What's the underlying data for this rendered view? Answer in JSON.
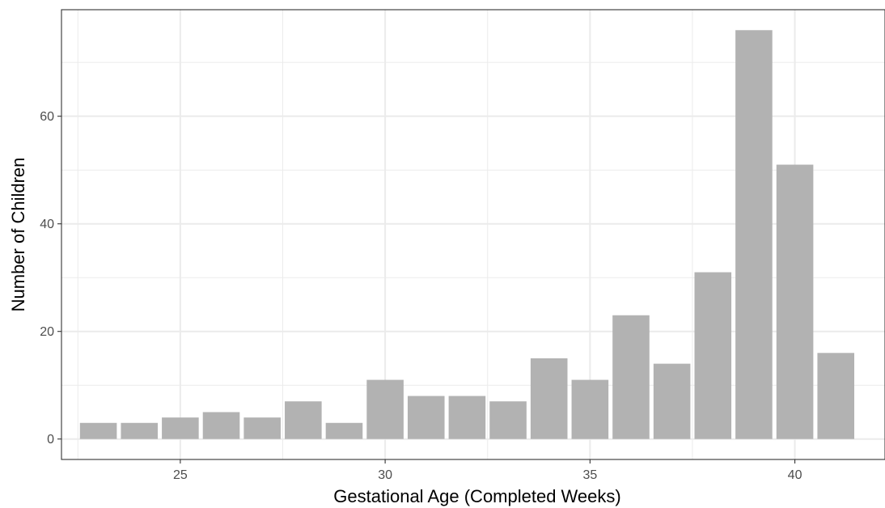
{
  "chart_data": {
    "type": "bar",
    "title": "",
    "xlabel": "Gestational Age (Completed Weeks)",
    "ylabel": "Number of Children",
    "x": [
      23,
      24,
      25,
      26,
      27,
      28,
      29,
      30,
      31,
      32,
      33,
      34,
      35,
      36,
      37,
      38,
      39,
      40,
      41
    ],
    "values": [
      3,
      3,
      4,
      5,
      4,
      7,
      3,
      11,
      8,
      8,
      7,
      15,
      11,
      23,
      14,
      31,
      76,
      51,
      16
    ],
    "xlim": [
      22.1,
      42.2
    ],
    "ylim": [
      -3.8,
      79.8
    ],
    "x_ticks": [
      25,
      30,
      35,
      40
    ],
    "y_ticks": [
      0,
      20,
      40,
      60
    ],
    "x_tick_labels": [
      "25",
      "30",
      "35",
      "40"
    ],
    "y_tick_labels": [
      "0",
      "20",
      "40",
      "60"
    ],
    "bar_color": "#b2b2b2",
    "grid": true,
    "theme": "bw"
  }
}
